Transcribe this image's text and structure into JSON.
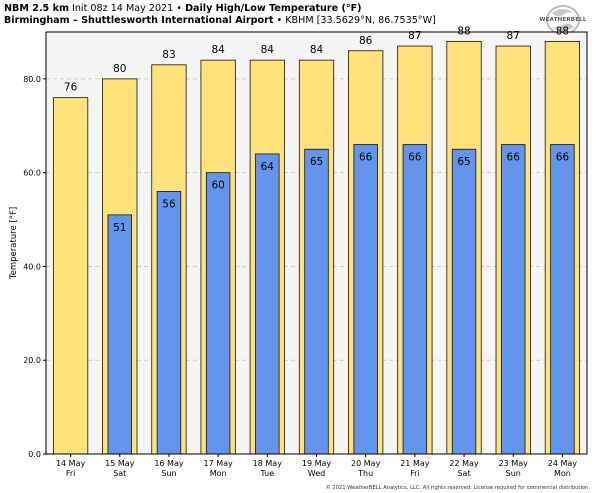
{
  "header": {
    "model": "NBM 2.5 km",
    "init": "Init 08z 14 May 2021",
    "sep": "•",
    "title": "Daily High/Low Temperature (°F)",
    "station": "Birmingham – Shuttlesworth International Airport",
    "station_info": "KBHM [33.5629°N, 86.7535°W]"
  },
  "logo": {
    "text": "WEATHERBELL"
  },
  "copyright": "© 2021 WeatherBELL Analytics, LLC. All rights reserved. License required for commercial distribution.",
  "colors": {
    "high": "#ffe27a",
    "low": "#6495ed",
    "plot_bg": "#f5f5f5",
    "grid": "#cccccc"
  },
  "chart_data": {
    "type": "bar",
    "title": "Daily High/Low Temperature (°F)",
    "ylabel": "Temperature [°F]",
    "ylim": [
      0,
      90
    ],
    "yticks": [
      "0.0",
      "20.0",
      "40.0",
      "60.0",
      "80.0"
    ],
    "yticks_values": [
      0,
      20,
      40,
      60,
      80
    ],
    "grid": true,
    "categories": [
      "14 May",
      "15 May",
      "16 May",
      "17 May",
      "18 May",
      "19 May",
      "20 May",
      "21 May",
      "22 May",
      "23 May",
      "24 May"
    ],
    "weekdays": [
      "Fri",
      "Sat",
      "Sun",
      "Mon",
      "Tue",
      "Wed",
      "Thu",
      "Fri",
      "Sat",
      "Sun",
      "Mon"
    ],
    "series": [
      {
        "values": [
          76,
          80,
          83,
          84,
          84,
          84,
          86,
          87,
          88,
          87,
          88
        ]
      },
      {
        "values": [
          null,
          51,
          56,
          60,
          64,
          65,
          66,
          66,
          65,
          66,
          66
        ]
      }
    ]
  }
}
